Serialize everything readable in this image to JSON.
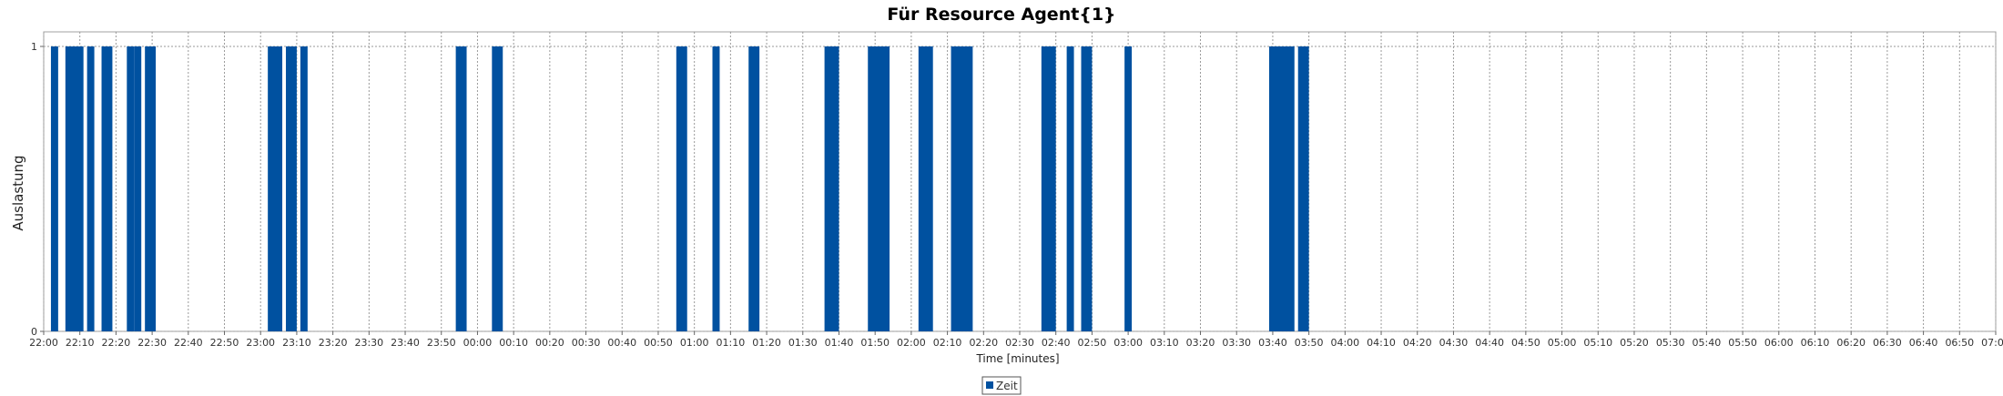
{
  "chart_data": {
    "type": "bar",
    "title": "Für Resource Agent{1}",
    "xlabel": "Time [minutes]",
    "ylabel": "Auslastung",
    "x_axis": "time",
    "x_range": [
      "22:00",
      "07:00"
    ],
    "x_tick_interval_minutes": 10,
    "x_ticks": [
      "22:00",
      "22:10",
      "22:20",
      "22:30",
      "22:40",
      "22:50",
      "23:00",
      "23:10",
      "23:20",
      "23:30",
      "23:40",
      "23:50",
      "00:00",
      "00:10",
      "00:20",
      "00:30",
      "00:40",
      "00:50",
      "01:00",
      "01:10",
      "01:20",
      "01:30",
      "01:40",
      "01:50",
      "02:00",
      "02:10",
      "02:20",
      "02:30",
      "02:40",
      "02:50",
      "03:00",
      "03:10",
      "03:20",
      "03:30",
      "03:40",
      "03:50",
      "04:00",
      "04:10",
      "04:20",
      "04:30",
      "04:40",
      "04:50",
      "05:00",
      "05:10",
      "05:20",
      "05:30",
      "05:40",
      "05:50",
      "06:00",
      "06:10",
      "06:20",
      "06:30",
      "06:40",
      "06:50",
      "07:00"
    ],
    "y_ticks": [
      "0",
      "1"
    ],
    "ylim": [
      0,
      1
    ],
    "grid": true,
    "legend_position": "bottom-center",
    "series": [
      {
        "name": "Zeit",
        "color": "#0051A0",
        "bars": [
          {
            "start": "22:02",
            "end": "22:04",
            "value": 1
          },
          {
            "start": "22:06",
            "end": "22:11",
            "value": 1
          },
          {
            "start": "22:12",
            "end": "22:14",
            "value": 1
          },
          {
            "start": "22:16",
            "end": "22:19",
            "value": 1
          },
          {
            "start": "22:23",
            "end": "22:25",
            "value": 1
          },
          {
            "start": "22:25",
            "end": "22:27",
            "value": 1
          },
          {
            "start": "22:28",
            "end": "22:31",
            "value": 1
          },
          {
            "start": "23:02",
            "end": "23:06",
            "value": 1
          },
          {
            "start": "23:07",
            "end": "23:10",
            "value": 1
          },
          {
            "start": "23:11",
            "end": "23:13",
            "value": 1
          },
          {
            "start": "23:54",
            "end": "23:57",
            "value": 1
          },
          {
            "start": "00:04",
            "end": "00:07",
            "value": 1
          },
          {
            "start": "00:55",
            "end": "00:58",
            "value": 1
          },
          {
            "start": "01:05",
            "end": "01:07",
            "value": 1
          },
          {
            "start": "01:15",
            "end": "01:18",
            "value": 1
          },
          {
            "start": "01:36",
            "end": "01:40",
            "value": 1
          },
          {
            "start": "01:48",
            "end": "01:54",
            "value": 1
          },
          {
            "start": "02:02",
            "end": "02:06",
            "value": 1
          },
          {
            "start": "02:11",
            "end": "02:17",
            "value": 1
          },
          {
            "start": "02:36",
            "end": "02:40",
            "value": 1
          },
          {
            "start": "02:43",
            "end": "02:45",
            "value": 1
          },
          {
            "start": "02:47",
            "end": "02:50",
            "value": 1
          },
          {
            "start": "02:59",
            "end": "03:01",
            "value": 1
          },
          {
            "start": "03:39",
            "end": "03:46",
            "value": 1
          },
          {
            "start": "03:47",
            "end": "03:50",
            "value": 1
          }
        ]
      }
    ]
  }
}
